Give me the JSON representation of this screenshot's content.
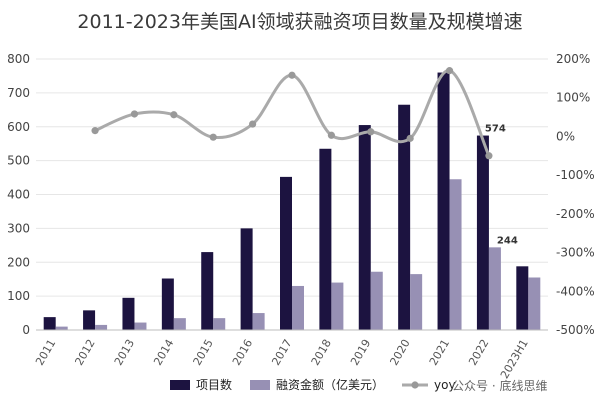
{
  "chart_data": {
    "type": "bar",
    "title": "2011-2023年美国AI领域获融资项目数量及规模增速",
    "categories": [
      "2011",
      "2012",
      "2013",
      "2014",
      "2015",
      "2016",
      "2017",
      "2018",
      "2019",
      "2020",
      "2021",
      "2022",
      "2023H1"
    ],
    "series": [
      {
        "name": "项目数",
        "type": "bar",
        "axis": "left",
        "color": "#1c1340",
        "values": [
          38,
          58,
          95,
          152,
          230,
          300,
          452,
          535,
          605,
          665,
          760,
          574,
          188
        ]
      },
      {
        "name": "融资金额（亿美元）",
        "type": "bar",
        "axis": "left",
        "color": "#9790b4",
        "values": [
          10,
          15,
          22,
          35,
          35,
          50,
          130,
          140,
          172,
          165,
          445,
          244,
          155
        ]
      },
      {
        "name": "yoy",
        "type": "line",
        "axis": "right",
        "color": "#aaaaaa",
        "values": [
          null,
          15,
          58,
          56,
          -2,
          32,
          158,
          3,
          12,
          -5,
          170,
          -50,
          null
        ]
      }
    ],
    "ylim": [
      0,
      800
    ],
    "yticks": [
      "0",
      "100",
      "200",
      "300",
      "400",
      "500",
      "600",
      "700",
      "800"
    ],
    "y2lim": [
      -500,
      200
    ],
    "y2ticks": [
      "-500%",
      "-400%",
      "-300%",
      "-200%",
      "-100%",
      "0%",
      "100%",
      "200%"
    ],
    "data_labels": [
      {
        "series": 0,
        "index": 11,
        "text": "574"
      },
      {
        "series": 1,
        "index": 11,
        "text": "244"
      }
    ],
    "legend_position": "bottom",
    "grid": true,
    "watermark": "公众号 · 底线思维"
  }
}
